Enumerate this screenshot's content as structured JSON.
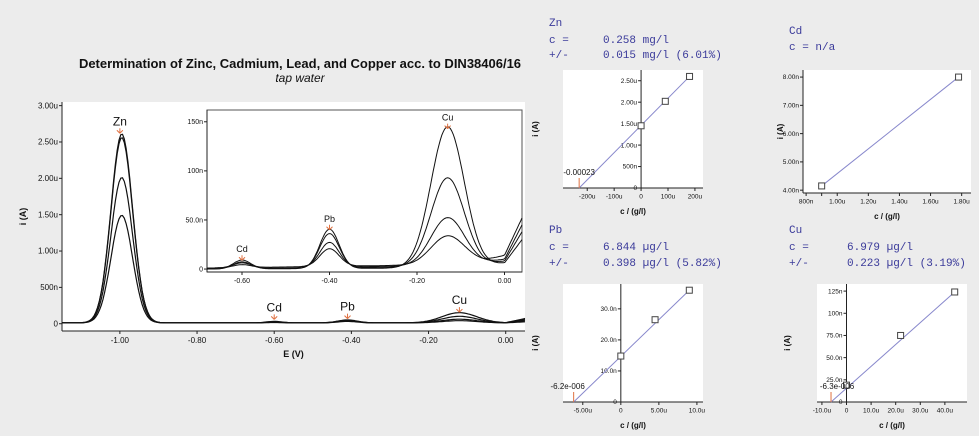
{
  "colors": {
    "background": "#ececec",
    "panel": "#ffffff",
    "curve": "#111111",
    "marker": "#e07040",
    "fit_line": "#8888cc",
    "result_text": "#3a3a9a"
  },
  "header": {
    "title": "Determination of Zinc, Cadmium, Lead, and Copper acc. to DIN38406/16",
    "subtitle": "tap water"
  },
  "results": [
    {
      "element": "Zn",
      "c_label": "c =",
      "c_value": "0.258 mg/l",
      "pm_label": "+/-",
      "pm_value": "0.015 mg/l (6.01%)"
    },
    {
      "element": "Cd",
      "c_label": "c = n/a",
      "c_value": "",
      "pm_label": "",
      "pm_value": ""
    },
    {
      "element": "Pb",
      "c_label": "c =",
      "c_value": "6.844 µg/l",
      "pm_label": "+/-",
      "pm_value": "0.398 µg/l (5.82%)"
    },
    {
      "element": "Cu",
      "c_label": "c =",
      "c_value": "6.979 µg/l",
      "pm_label": "+/-",
      "pm_value": "0.223 µg/l (3.19%)"
    }
  ],
  "chart_data": [
    {
      "type": "line",
      "id": "voltammogram",
      "xlabel": "E (V)",
      "ylabel": "i (A)",
      "xlim": [
        -1.15,
        0.05
      ],
      "ylim": [
        -0.1,
        3.05
      ],
      "x_ticks": [
        -1.0,
        -0.8,
        -0.6,
        -0.4,
        -0.2,
        0.0
      ],
      "x_tick_labels": [
        "-1.00",
        "-0.80",
        "-0.60",
        "-0.40",
        "-0.20",
        "0.00"
      ],
      "y_ticks": [
        0,
        0.5,
        1.0,
        1.5,
        2.0,
        2.5,
        3.0
      ],
      "y_tick_labels": [
        "0",
        "500n",
        "1.00u",
        "1.50u",
        "2.00u",
        "2.50u",
        "3.00u"
      ],
      "y_unit": "µA",
      "peak_labels": [
        {
          "name": "Zn",
          "x": -1.0,
          "y": 2.62
        },
        {
          "name": "Cd",
          "x": -0.6,
          "y": 0.06
        },
        {
          "name": "Pb",
          "x": -0.41,
          "y": 0.07
        },
        {
          "name": "Cu",
          "x": -0.12,
          "y": 0.16
        }
      ],
      "series_peak_heights": {
        "Zn": [
          1.48,
          2.0,
          2.55,
          2.6
        ],
        "Cd": [
          0.005,
          0.01,
          0.015,
          0.02
        ],
        "Pb": [
          0.02,
          0.028,
          0.036,
          0.04
        ],
        "Cu": [
          0.03,
          0.05,
          0.09,
          0.14
        ]
      }
    },
    {
      "type": "line",
      "id": "voltammogram-inset",
      "xlim": [
        -0.68,
        0.04
      ],
      "ylim": [
        -3,
        162
      ],
      "x_ticks": [
        -0.6,
        -0.4,
        -0.2,
        0.0
      ],
      "x_tick_labels": [
        "-0.60",
        "-0.40",
        "-0.20",
        "0.00"
      ],
      "y_ticks": [
        0,
        50,
        100,
        150
      ],
      "y_tick_labels": [
        "0",
        "50.0n",
        "100n",
        "150n"
      ],
      "y_unit": "nA",
      "peak_labels": [
        {
          "name": "Cd",
          "x": -0.6,
          "y": 9
        },
        {
          "name": "Pb",
          "x": -0.4,
          "y": 40
        },
        {
          "name": "Cu",
          "x": -0.13,
          "y": 143
        }
      ],
      "series_peak_heights": {
        "Cd": [
          3,
          5,
          7,
          9
        ],
        "Pb": [
          18,
          25,
          35,
          40
        ],
        "Cu": [
          28,
          48,
          90,
          143
        ]
      }
    },
    {
      "type": "scatter",
      "id": "calib-zn",
      "xlabel": "c / (g/l)",
      "ylabel": "i (A)",
      "x": [
        0,
        90,
        180
      ],
      "y": [
        1.45,
        2.02,
        2.6
      ],
      "fit_line": [
        [
          -230,
          0.0
        ],
        [
          180,
          2.6
        ]
      ],
      "intercept_label": "-0.00023",
      "xlim": [
        -290,
        230
      ],
      "ylim": [
        0,
        2.75
      ],
      "x_ticks": [
        -200,
        -100,
        0,
        100,
        200
      ],
      "x_tick_labels": [
        "-200u",
        "-100u",
        "0",
        "100u",
        "200u"
      ],
      "y_ticks": [
        0,
        0.5,
        1.0,
        1.5,
        2.0,
        2.5
      ],
      "y_tick_labels": [
        "0",
        "500n",
        "1.00u",
        "1.50u",
        "2.00u",
        "2.50u"
      ],
      "x_unit": "µg/l",
      "y_unit": "µA"
    },
    {
      "type": "scatter",
      "id": "calib-cd",
      "xlabel": "c / (g/l)",
      "ylabel": "i (A)",
      "x": [
        0.9,
        1.78
      ],
      "y": [
        4.15,
        8.0
      ],
      "fit_line": [
        [
          0.9,
          4.15
        ],
        [
          1.78,
          8.0
        ]
      ],
      "xlim": [
        0.78,
        1.86
      ],
      "ylim": [
        3.9,
        8.25
      ],
      "x_ticks": [
        0.8,
        0.9,
        1.0,
        1.2,
        1.4,
        1.6,
        1.8
      ],
      "x_tick_labels": [
        "800n",
        "",
        "1.00u",
        "1.20u",
        "1.40u",
        "1.60u",
        "1.80u"
      ],
      "y_ticks": [
        4,
        5,
        6,
        7,
        8
      ],
      "y_tick_labels": [
        "4.00n",
        "5.00n",
        "6.00n",
        "7.00n",
        "8.00n"
      ],
      "x_unit": "µg/l",
      "y_unit": "nA"
    },
    {
      "type": "scatter",
      "id": "calib-pb",
      "xlabel": "c / (g/l)",
      "ylabel": "i (A)",
      "x": [
        0,
        4.5,
        9.0
      ],
      "y": [
        14.8,
        26.5,
        36.0
      ],
      "fit_line": [
        [
          -6.2,
          0.0
        ],
        [
          9.0,
          36.0
        ]
      ],
      "intercept_label": "-6.2e-006",
      "xlim": [
        -7.6,
        10.8
      ],
      "ylim": [
        0,
        38
      ],
      "x_ticks": [
        -5,
        0,
        5,
        10
      ],
      "x_tick_labels": [
        "-5.00u",
        "0",
        "5.00u",
        "10.0u"
      ],
      "y_ticks": [
        0,
        10,
        20,
        30
      ],
      "y_tick_labels": [
        "0",
        "10.0n",
        "20.0n",
        "30.0n"
      ],
      "x_unit": "µg/l",
      "y_unit": "nA"
    },
    {
      "type": "scatter",
      "id": "calib-cu",
      "xlabel": "c / (g/l)",
      "ylabel": "i (A)",
      "x": [
        0,
        22,
        44
      ],
      "y": [
        19,
        75,
        124
      ],
      "fit_line": [
        [
          -6.3,
          0.0
        ],
        [
          44,
          124
        ]
      ],
      "intercept_label": "-6.3e-006",
      "xlim": [
        -12,
        49
      ],
      "ylim": [
        0,
        133
      ],
      "x_ticks": [
        -10,
        0,
        10,
        20,
        30,
        40
      ],
      "x_tick_labels": [
        "-10.0u",
        "0",
        "10.0u",
        "20.0u",
        "30.0u",
        "40.0u"
      ],
      "y_ticks": [
        0,
        25,
        50,
        75,
        100,
        125
      ],
      "y_tick_labels": [
        "0",
        "25.0n",
        "50.0n",
        "75.0n",
        "100n",
        "125n"
      ],
      "x_unit": "µg/l",
      "y_unit": "nA"
    }
  ]
}
